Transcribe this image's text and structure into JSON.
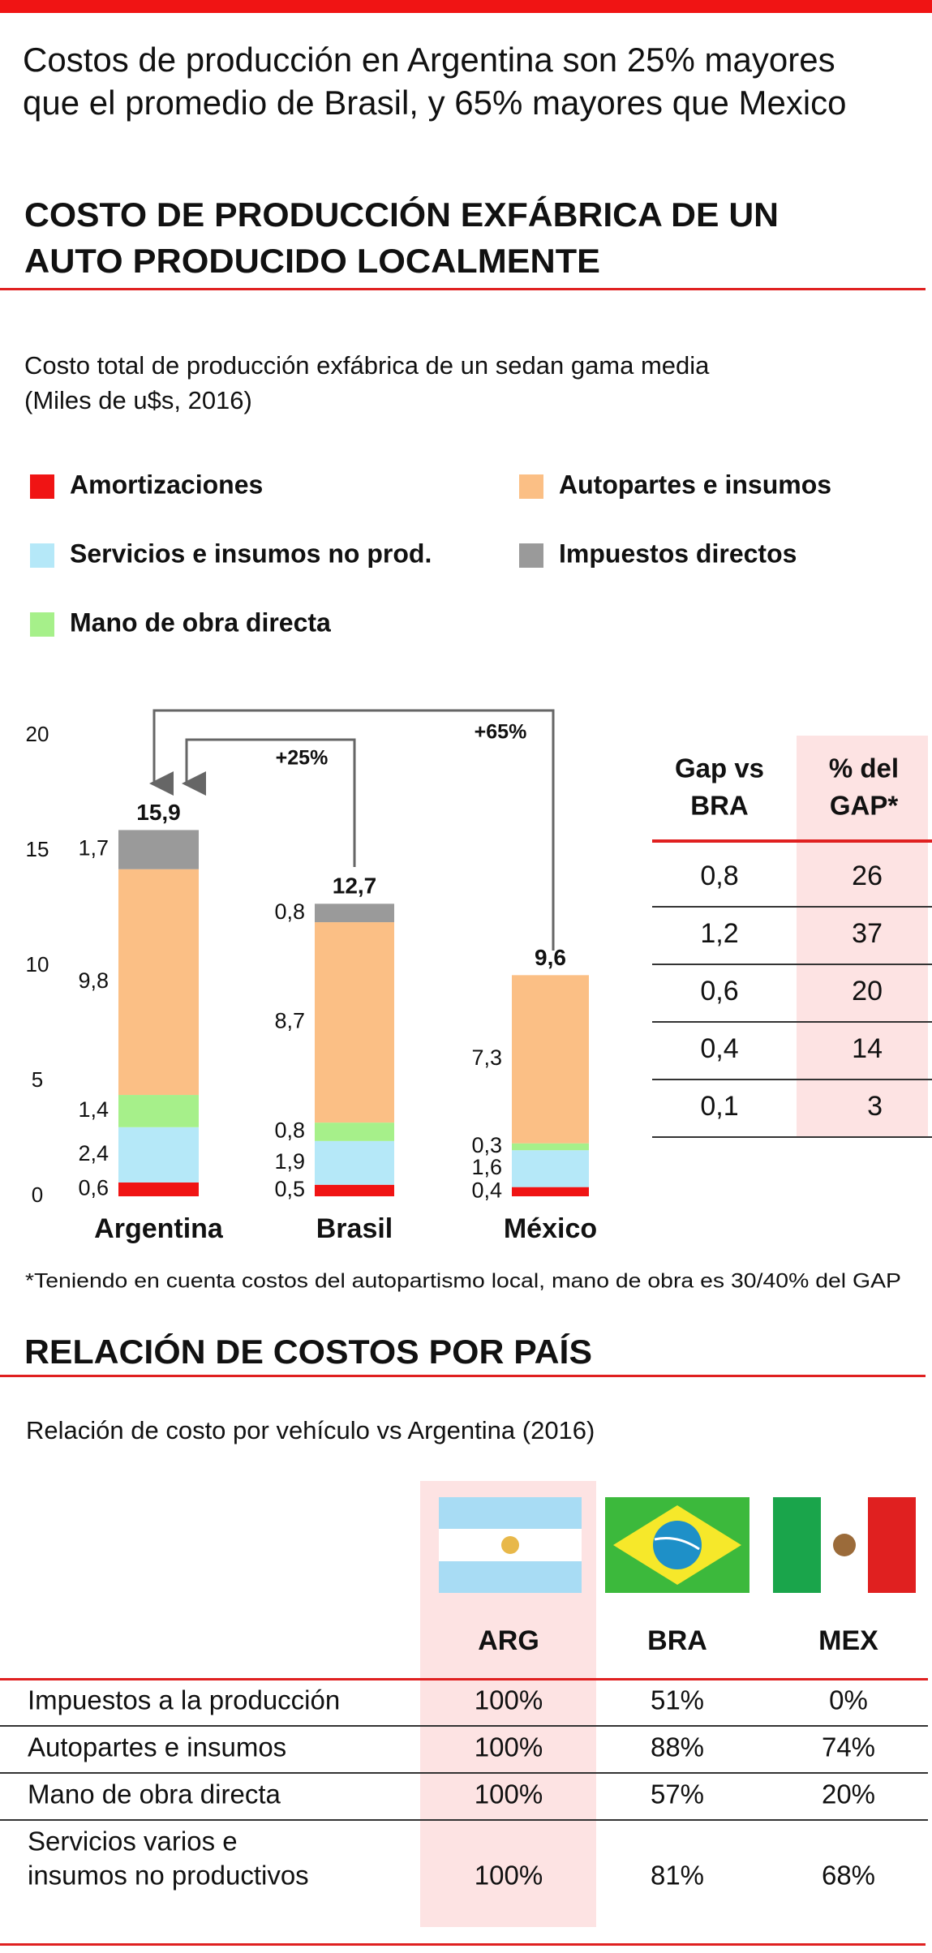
{
  "header": {
    "headline": [
      "Costos de producción en Argentina son 25% mayores",
      "que el promedio de Brasil, y 65% mayores que Mexico"
    ],
    "section_title": [
      "COSTO DE PRODUCCIÓN EXFÁBRICA DE UN",
      "AUTO PRODUCIDO LOCALMENTE"
    ]
  },
  "chart_data": {
    "type": "bar",
    "stacked": true,
    "subtitle": [
      "Costo total de producción exfábrica de un sedan gama media",
      "(Miles de u$s, 2016)"
    ],
    "categories": [
      "Argentina",
      "Brasil",
      "México"
    ],
    "series": [
      {
        "name": "Amortizaciones",
        "color": "#f01414",
        "values": [
          0.6,
          0.5,
          0.4
        ],
        "value_labels": [
          "0,6",
          "0,5",
          "0,4"
        ]
      },
      {
        "name": "Servicios e insumos no prod.",
        "color": "#b5e8f8",
        "values": [
          2.4,
          1.9,
          1.6
        ],
        "value_labels": [
          "2,4",
          "1,9",
          "1,6"
        ]
      },
      {
        "name": "Mano de obra directa",
        "color": "#a6f08a",
        "values": [
          1.4,
          0.8,
          0.3
        ],
        "value_labels": [
          "1,4",
          "0,8",
          "0,3"
        ]
      },
      {
        "name": "Autopartes e insumos",
        "color": "#fbbf85",
        "values": [
          9.8,
          8.7,
          7.3
        ],
        "value_labels": [
          "9,8",
          "8,7",
          "7,3"
        ]
      },
      {
        "name": "Impuestos directos",
        "color": "#9a9a9a",
        "values": [
          1.7,
          0.8,
          null
        ],
        "value_labels": [
          "1,7",
          "0,8",
          null
        ]
      }
    ],
    "totals": [
      15.9,
      12.7,
      9.6
    ],
    "total_labels": [
      "15,9",
      "12,7",
      "9,6"
    ],
    "ylim": [
      0,
      20
    ],
    "yticks": [
      0,
      5,
      10,
      15,
      20
    ],
    "grid": false,
    "annotations": [
      "+25%",
      "+65%"
    ]
  },
  "gap_table": {
    "header": [
      [
        "Gap vs",
        "BRA"
      ],
      [
        "% del",
        "GAP*"
      ]
    ],
    "rows": [
      [
        "0,8",
        "26"
      ],
      [
        "1,2",
        "37"
      ],
      [
        "0,6",
        "20"
      ],
      [
        "0,4",
        "14"
      ],
      [
        "0,1",
        "3"
      ]
    ]
  },
  "footnote": "*Teniendo en cuenta costos del autopartismo local, mano de obra es 30/40% del GAP",
  "cost_section": {
    "title": "RELACIÓN DE COSTOS POR PAÍS",
    "subtitle": "Relación de costo por vehículo vs Argentina (2016)",
    "columns": [
      "ARG",
      "BRA",
      "MEX"
    ],
    "rows": [
      {
        "label": [
          "Impuestos a la producción"
        ],
        "values": [
          "100%",
          "51%",
          "0%"
        ]
      },
      {
        "label": [
          "Autopartes e insumos"
        ],
        "values": [
          "100%",
          "88%",
          "74%"
        ]
      },
      {
        "label": [
          "Mano de obra directa"
        ],
        "values": [
          "100%",
          "57%",
          "20%"
        ]
      },
      {
        "label": [
          "Servicios varios e",
          "insumos no productivos"
        ],
        "values": [
          "100%",
          "81%",
          "68%"
        ]
      }
    ]
  }
}
